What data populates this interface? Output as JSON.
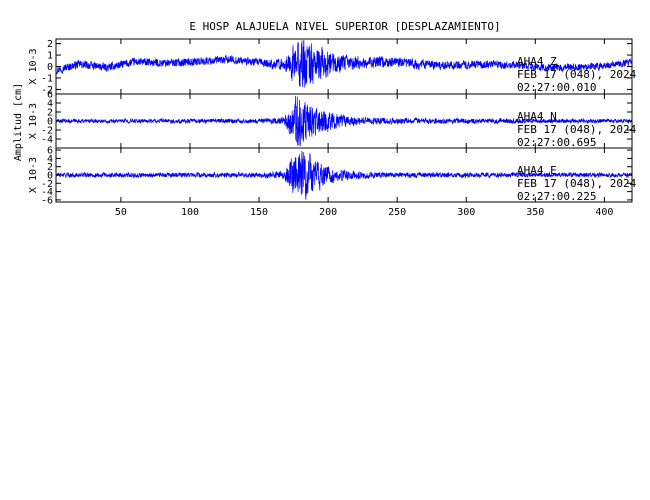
{
  "chart_data": {
    "type": "line",
    "title": "E HOSP ALAJUELA NIVEL SUPERIOR [DESPLAZAMIENTO]",
    "ylabel": "Amplitud [cm]",
    "xlabel": "",
    "xlim": [
      3,
      420
    ],
    "x_ticks": [
      50,
      100,
      150,
      200,
      250,
      300,
      350,
      400
    ],
    "x_tick_labels": [
      "50",
      "100",
      "150",
      "200",
      "250",
      "300",
      "350",
      "400"
    ],
    "grid": false,
    "line_color": "#0000ff",
    "panels": [
      {
        "station": "AHA4",
        "component": "Z",
        "date": "FEB 17 (048), 2024",
        "time": "02:27:00.010",
        "scale_label": "X 10-3",
        "ylim": [
          -2.4,
          2.4
        ],
        "y_ticks": [
          -2,
          -1,
          0,
          1,
          2
        ],
        "y_tick_labels": [
          "-2",
          "-1",
          "0",
          "1",
          "2"
        ],
        "envelope": [
          {
            "t": 3,
            "a": 0.35
          },
          {
            "t": 150,
            "a": 0.35
          },
          {
            "t": 168,
            "a": 0.45
          },
          {
            "t": 175,
            "a": 1.6
          },
          {
            "t": 182,
            "a": 2.3
          },
          {
            "t": 190,
            "a": 1.7
          },
          {
            "t": 205,
            "a": 0.8
          },
          {
            "t": 230,
            "a": 0.5
          },
          {
            "t": 300,
            "a": 0.35
          },
          {
            "t": 420,
            "a": 0.3
          }
        ],
        "drift": [
          {
            "t": 3,
            "v": -0.3
          },
          {
            "t": 20,
            "v": 0.2
          },
          {
            "t": 40,
            "v": -0.1
          },
          {
            "t": 60,
            "v": 0.4
          },
          {
            "t": 80,
            "v": 0.3
          },
          {
            "t": 100,
            "v": 0.4
          },
          {
            "t": 130,
            "v": 0.6
          },
          {
            "t": 160,
            "v": 0.2
          },
          {
            "t": 200,
            "v": 0.2
          },
          {
            "t": 240,
            "v": 0.4
          },
          {
            "t": 280,
            "v": 0.1
          },
          {
            "t": 320,
            "v": 0.2
          },
          {
            "t": 360,
            "v": -0.1
          },
          {
            "t": 395,
            "v": 0.0
          },
          {
            "t": 420,
            "v": 0.4
          }
        ]
      },
      {
        "station": "AHA4",
        "component": "N",
        "date": "FEB 17 (048), 2024",
        "time": "02:27:00.695",
        "scale_label": "X 10-3",
        "ylim": [
          -6,
          6
        ],
        "y_ticks": [
          -4,
          -2,
          0,
          2,
          4,
          6
        ],
        "y_tick_labels": [
          "-4",
          "-2",
          "0",
          "2",
          "4",
          "6"
        ],
        "envelope": [
          {
            "t": 3,
            "a": 0.4
          },
          {
            "t": 150,
            "a": 0.5
          },
          {
            "t": 168,
            "a": 0.8
          },
          {
            "t": 174,
            "a": 4.0
          },
          {
            "t": 178,
            "a": 6.0
          },
          {
            "t": 188,
            "a": 3.5
          },
          {
            "t": 200,
            "a": 2.2
          },
          {
            "t": 215,
            "a": 1.0
          },
          {
            "t": 250,
            "a": 0.6
          },
          {
            "t": 420,
            "a": 0.4
          }
        ],
        "drift": [
          {
            "t": 3,
            "v": 0.0
          },
          {
            "t": 420,
            "v": 0.0
          }
        ]
      },
      {
        "station": "AHA4",
        "component": "E",
        "date": "FEB 17 (048), 2024",
        "time": "02:27:00.225",
        "scale_label": "X 10-3",
        "ylim": [
          -6.5,
          6.5
        ],
        "y_ticks": [
          -6,
          -4,
          -2,
          0,
          2,
          4,
          6
        ],
        "y_tick_labels": [
          "-6",
          "-4",
          "-2",
          "0",
          "2",
          "4",
          "6"
        ],
        "envelope": [
          {
            "t": 3,
            "a": 0.5
          },
          {
            "t": 150,
            "a": 0.6
          },
          {
            "t": 168,
            "a": 1.0
          },
          {
            "t": 173,
            "a": 4.0
          },
          {
            "t": 180,
            "a": 6.0
          },
          {
            "t": 188,
            "a": 4.5
          },
          {
            "t": 200,
            "a": 2.0
          },
          {
            "t": 215,
            "a": 1.0
          },
          {
            "t": 250,
            "a": 0.6
          },
          {
            "t": 420,
            "a": 0.5
          }
        ],
        "drift": [
          {
            "t": 3,
            "v": 0.0
          },
          {
            "t": 420,
            "v": 0.0
          }
        ]
      }
    ]
  }
}
